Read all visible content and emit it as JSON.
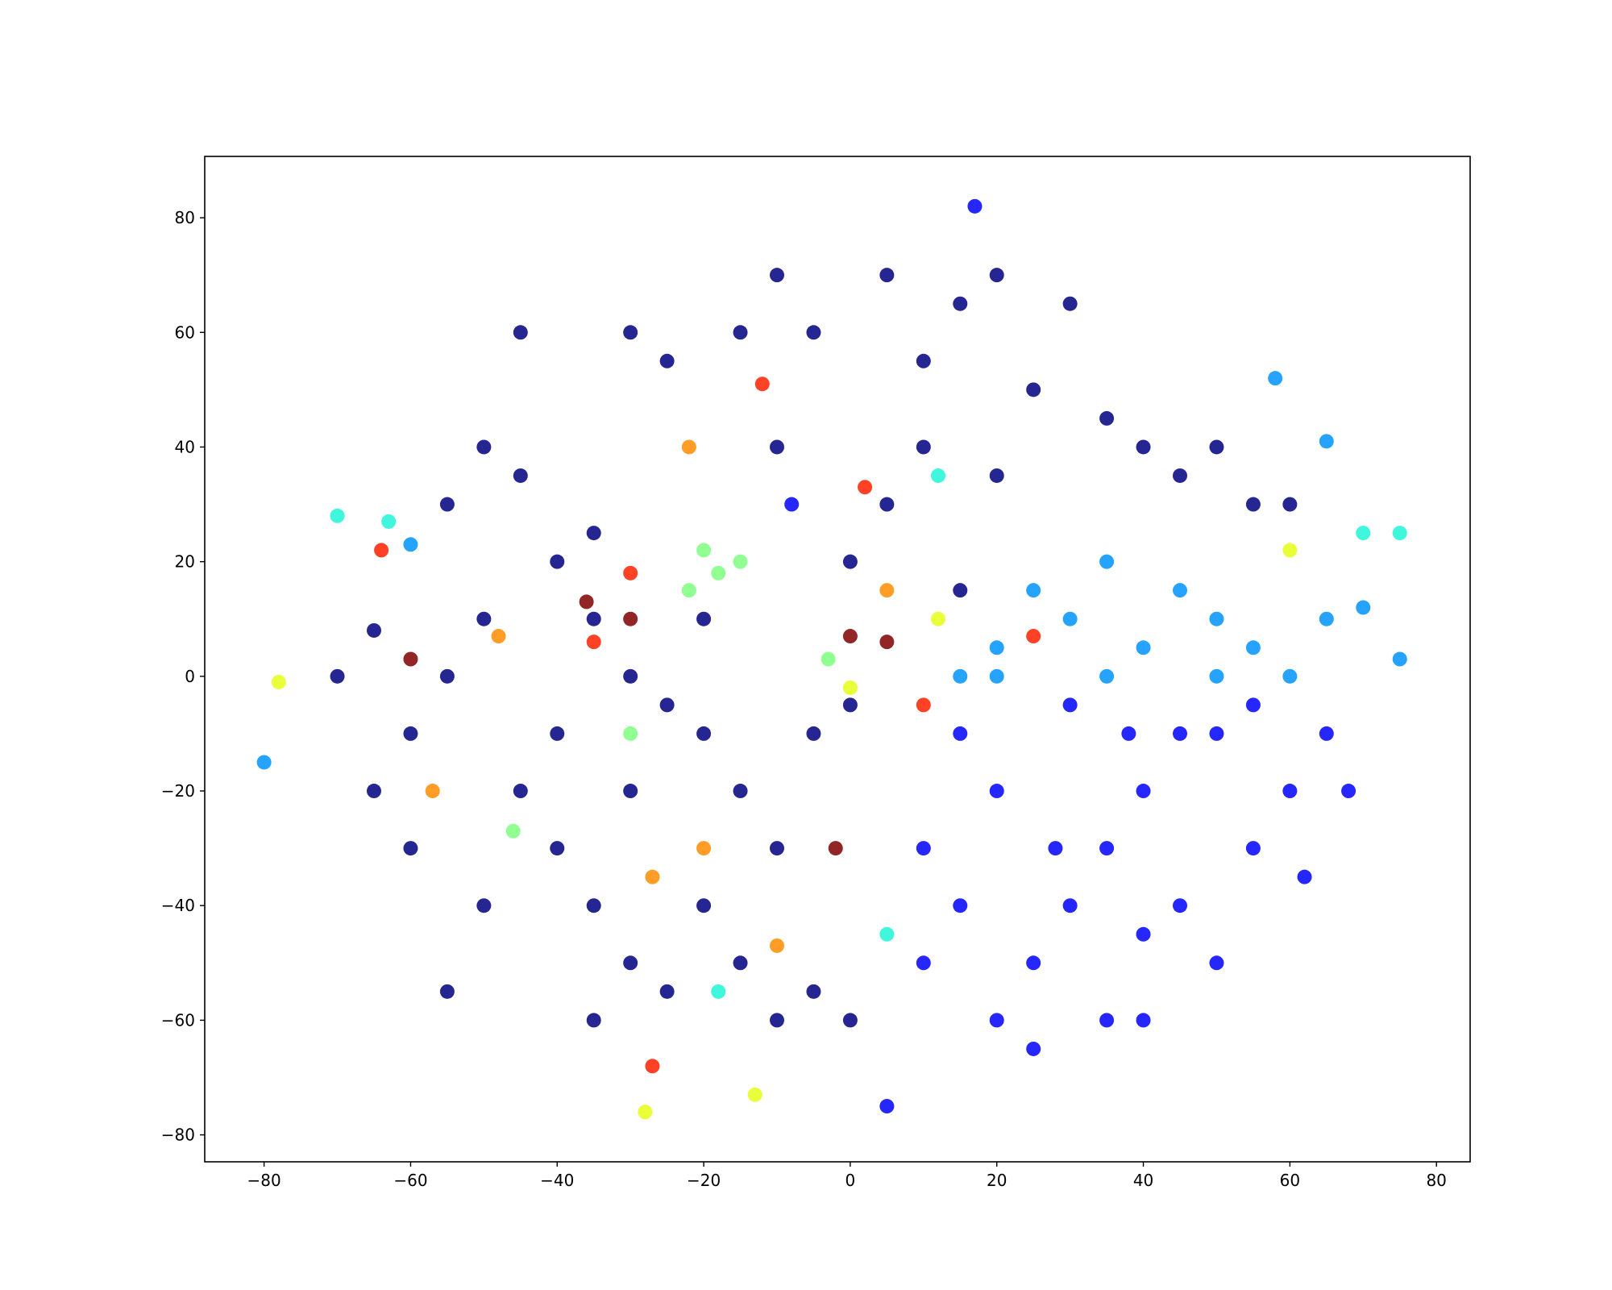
{
  "chart_data": {
    "type": "scatter",
    "xlim": [
      -88.1,
      84.6
    ],
    "ylim": [
      -84.7,
      90.7
    ],
    "xticks": [
      {
        "value": -80,
        "label": "−80"
      },
      {
        "value": -60,
        "label": "−60"
      },
      {
        "value": -40,
        "label": "−40"
      },
      {
        "value": -20,
        "label": "−20"
      },
      0,
      20,
      40,
      60,
      80
    ],
    "yticks": [
      {
        "value": -80,
        "label": "−80"
      },
      {
        "value": -60,
        "label": "−60"
      },
      {
        "value": -40,
        "label": "−40"
      },
      {
        "value": -20,
        "label": "−20"
      },
      0,
      20,
      40,
      60,
      80
    ],
    "series": [
      {
        "color": "#00007f",
        "x": [
          -70,
          -65,
          -60,
          -55,
          -50,
          -45,
          -40,
          -35,
          -30,
          -25,
          -15,
          -10,
          -5,
          5,
          10,
          15,
          20,
          25,
          30,
          35,
          40,
          45,
          50,
          55,
          60,
          -45,
          -40,
          -35,
          -30,
          -25,
          -20,
          -15,
          -10,
          -5,
          0,
          -20,
          -25,
          -30,
          -50,
          -55,
          -60,
          -65,
          -10,
          -5,
          0,
          -35,
          -40,
          -50,
          -55,
          -20,
          -10,
          0,
          5,
          10,
          15,
          20,
          -30,
          -15,
          -45,
          -35
        ],
        "values": [
          0,
          8,
          -10,
          30,
          40,
          35,
          20,
          25,
          60,
          55,
          60,
          70,
          60,
          70,
          55,
          65,
          70,
          50,
          65,
          45,
          40,
          35,
          40,
          30,
          30,
          -20,
          -30,
          -40,
          -50,
          -55,
          -40,
          -20,
          -30,
          -10,
          -5,
          -10,
          -5,
          -20,
          -40,
          -55,
          -30,
          -20,
          -60,
          -55,
          -60,
          -60,
          -10,
          10,
          0,
          10,
          40,
          20,
          30,
          40,
          15,
          35,
          0,
          -50,
          60,
          10
        ]
      },
      {
        "color": "#0000ff",
        "x": [
          10,
          15,
          20,
          25,
          30,
          35,
          40,
          45,
          50,
          35,
          25,
          20,
          55,
          60,
          65,
          68,
          62,
          45,
          30,
          40,
          15,
          10,
          5,
          40,
          50,
          28,
          38,
          17,
          -8,
          55
        ],
        "values": [
          -30,
          -40,
          -20,
          -50,
          -40,
          -30,
          -20,
          -40,
          -50,
          -60,
          -65,
          -60,
          -30,
          -20,
          -10,
          -20,
          -35,
          -10,
          -5,
          -45,
          -10,
          -50,
          -75,
          -60,
          -10,
          -30,
          -10,
          82,
          30,
          -5
        ]
      },
      {
        "color": "#0092ff",
        "x": [
          15,
          20,
          25,
          30,
          35,
          40,
          45,
          50,
          55,
          60,
          65,
          70,
          75,
          58,
          65,
          -80,
          -60,
          20,
          50,
          35
        ],
        "values": [
          0,
          5,
          15,
          10,
          20,
          5,
          15,
          10,
          5,
          0,
          10,
          12,
          3,
          52,
          41,
          -15,
          23,
          0,
          0,
          0
        ]
      },
      {
        "color": "#1ff5d7",
        "x": [
          -70,
          -63,
          70,
          75,
          5,
          -18,
          12
        ],
        "values": [
          28,
          27,
          25,
          25,
          -45,
          -55,
          35
        ]
      },
      {
        "color": "#7fff7f",
        "x": [
          -20,
          -18,
          -15,
          -3,
          -22,
          -30,
          -46
        ],
        "values": [
          22,
          18,
          20,
          3,
          15,
          -10,
          -27
        ]
      },
      {
        "color": "#e5ff18",
        "x": [
          -78,
          12,
          -28,
          60,
          -13,
          0
        ],
        "values": [
          -1,
          10,
          -76,
          22,
          -73,
          -2
        ]
      },
      {
        "color": "#ff8c00",
        "x": [
          -22,
          -48,
          5,
          -27,
          -57,
          -10,
          -20
        ],
        "values": [
          40,
          7,
          15,
          -35,
          -20,
          -47,
          -30
        ]
      },
      {
        "color": "#ff2000",
        "x": [
          -64,
          -30,
          -35,
          25,
          10,
          -12,
          2,
          -27
        ],
        "values": [
          22,
          18,
          6,
          7,
          -5,
          51,
          33,
          -68
        ]
      },
      {
        "color": "#7f0000",
        "x": [
          -36,
          -60,
          -30,
          5,
          -2,
          0
        ],
        "values": [
          13,
          3,
          10,
          6,
          -30,
          7
        ]
      }
    ]
  }
}
